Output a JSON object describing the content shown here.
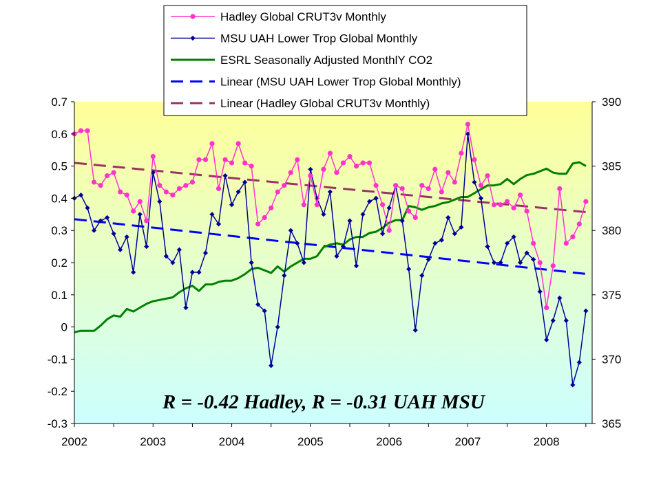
{
  "chart_data": {
    "type": "line",
    "x_ticks": [
      "2002",
      "2003",
      "2004",
      "2005",
      "2006",
      "2007",
      "2008"
    ],
    "x_range": [
      2002.0,
      2008.58
    ],
    "y_left": {
      "range": [
        -0.3,
        0.7
      ],
      "ticks": [
        "0.7",
        "0.6",
        "0.5",
        "0.4",
        "0.3",
        "0.2",
        "0.1",
        "0",
        "-0.1",
        "-0.2",
        "-0.3"
      ]
    },
    "y_right": {
      "range": [
        365,
        390
      ],
      "ticks": [
        "390",
        "385",
        "380",
        "375",
        "370",
        "365"
      ]
    },
    "background_gradient": [
      "#ffff99",
      "#ccffff"
    ],
    "annotation": "R = -0.42 Hadley,  R = -0.31 UAH MSU",
    "legend_position": "top",
    "series": [
      {
        "name": "Hadley Global CRUT3v Monthly",
        "axis": "left",
        "color": "#ff33cc",
        "marker": "circle",
        "start": 2002.0,
        "values": [
          0.6,
          0.61,
          0.61,
          0.45,
          0.44,
          0.47,
          0.48,
          0.42,
          0.41,
          0.36,
          0.39,
          0.33,
          0.53,
          0.44,
          0.42,
          0.41,
          0.43,
          0.44,
          0.45,
          0.52,
          0.52,
          0.57,
          0.43,
          0.52,
          0.51,
          0.57,
          0.51,
          0.5,
          0.32,
          0.34,
          0.37,
          0.42,
          0.44,
          0.48,
          0.52,
          0.38,
          0.47,
          0.38,
          0.49,
          0.54,
          0.48,
          0.51,
          0.53,
          0.5,
          0.51,
          0.51,
          0.44,
          0.38,
          0.3,
          0.44,
          0.43,
          0.36,
          0.34,
          0.44,
          0.43,
          0.49,
          0.42,
          0.48,
          0.45,
          0.54,
          0.63,
          0.52,
          0.44,
          0.47,
          0.38,
          0.38,
          0.39,
          0.37,
          0.41,
          0.36,
          0.26,
          0.2,
          0.06,
          0.19,
          0.43,
          0.26,
          0.28,
          0.32,
          0.39
        ]
      },
      {
        "name": "MSU UAH Lower Trop Global Monthly",
        "axis": "left",
        "color": "#000099",
        "marker": "diamond",
        "start": 2002.0,
        "values": [
          0.4,
          0.41,
          0.37,
          0.3,
          0.33,
          0.34,
          0.29,
          0.24,
          0.28,
          0.17,
          0.35,
          0.25,
          0.48,
          0.39,
          0.22,
          0.2,
          0.24,
          0.06,
          0.17,
          0.17,
          0.23,
          0.35,
          0.32,
          0.47,
          0.38,
          0.42,
          0.45,
          0.2,
          0.07,
          0.05,
          -0.12,
          0.0,
          0.16,
          0.3,
          0.26,
          0.2,
          0.49,
          0.4,
          0.35,
          0.42,
          0.22,
          0.25,
          0.33,
          0.19,
          0.35,
          0.39,
          0.4,
          0.29,
          0.37,
          0.44,
          0.33,
          0.18,
          -0.01,
          0.16,
          0.21,
          0.26,
          0.27,
          0.34,
          0.29,
          0.31,
          0.6,
          0.45,
          0.4,
          0.25,
          0.2,
          0.2,
          0.26,
          0.28,
          0.2,
          0.23,
          0.21,
          0.11,
          -0.04,
          0.02,
          0.09,
          0.02,
          -0.18,
          -0.11,
          0.05
        ]
      },
      {
        "name": "ESRL Seasonally Adjusted MonthlY CO2",
        "axis": "right",
        "color": "#008000",
        "marker": "none",
        "start": 2002.0,
        "values": [
          372.1,
          372.2,
          372.2,
          372.2,
          372.6,
          373.1,
          373.4,
          373.3,
          373.9,
          373.7,
          374.0,
          374.3,
          374.5,
          374.6,
          374.7,
          374.8,
          375.2,
          375.5,
          375.7,
          375.3,
          375.8,
          375.8,
          376.0,
          376.1,
          376.1,
          376.3,
          376.6,
          377.0,
          377.1,
          376.9,
          376.7,
          377.2,
          376.8,
          377.2,
          377.5,
          377.8,
          377.8,
          378.0,
          378.7,
          378.9,
          379.0,
          378.9,
          379.3,
          379.5,
          379.5,
          379.8,
          379.9,
          380.2,
          380.6,
          380.8,
          380.8,
          381.9,
          381.8,
          381.6,
          381.8,
          381.9,
          382.1,
          382.2,
          382.4,
          382.6,
          382.6,
          382.9,
          383.2,
          383.5,
          383.5,
          383.6,
          384.0,
          383.6,
          384.0,
          384.3,
          384.4,
          384.6,
          384.8,
          384.5,
          384.4,
          384.4,
          385.2,
          385.3,
          385.0
        ]
      },
      {
        "name": "Linear (MSU UAH Lower Trop Global Monthly)",
        "axis": "left",
        "color": "#0000ff",
        "dash": "long",
        "start": 2002.0,
        "values_endpoints": [
          0.335,
          0.165
        ]
      },
      {
        "name": "Linear (Hadley Global CRUT3v Monthly)",
        "axis": "left",
        "color": "#993366",
        "dash": "long",
        "start": 2002.0,
        "values_endpoints": [
          0.51,
          0.357
        ]
      }
    ]
  }
}
